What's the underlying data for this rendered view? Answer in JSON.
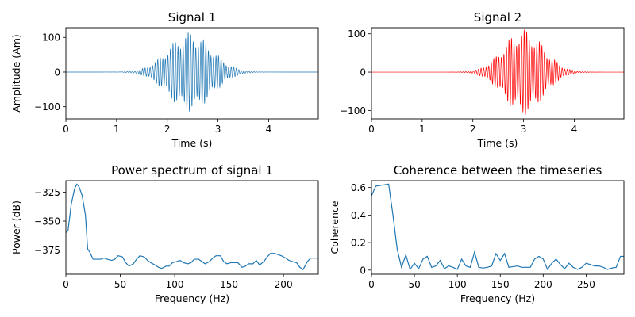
{
  "colors": {
    "series_blue": "#1f77b4",
    "series_red": "#ff0000",
    "axis": "#000000"
  },
  "chart_data": [
    {
      "id": "signal1",
      "type": "line",
      "title": "Signal 1",
      "xlabel": "Time (s)",
      "ylabel": "Amplitude (Am)",
      "xlim": [
        0,
        4.98
      ],
      "ylim": [
        -135,
        128
      ],
      "xticks": [
        0,
        1,
        2,
        3,
        4
      ],
      "yticks": [
        -100,
        0,
        100
      ],
      "series": [
        {
          "color": "#1f77b4",
          "waveform": {
            "center": 2.45,
            "width": 0.6,
            "amplitude": 115,
            "frequency": 20
          }
        }
      ]
    },
    {
      "id": "signal2",
      "type": "line",
      "title": "Signal 2",
      "xlabel": "Time (s)",
      "ylabel": "",
      "xlim": [
        0,
        4.98
      ],
      "ylim": [
        -122,
        116
      ],
      "xticks": [
        0,
        1,
        2,
        3,
        4
      ],
      "yticks": [
        -100,
        0,
        100
      ],
      "series": [
        {
          "color": "#ff0000",
          "waveform": {
            "center": 3.0,
            "width": 0.55,
            "amplitude": 112,
            "frequency": 20
          }
        }
      ]
    },
    {
      "id": "power",
      "type": "line",
      "title": "Power spectrum of signal 1",
      "xlabel": "Frequency (Hz)",
      "ylabel": "Power (dB)",
      "xlim": [
        0,
        232
      ],
      "ylim": [
        -396,
        -315
      ],
      "xticks": [
        0,
        50,
        100,
        150,
        200
      ],
      "yticks": [
        -325,
        -350,
        -375
      ],
      "series": [
        {
          "color": "#1f77b4",
          "x": [
            0,
            2,
            5,
            8,
            10,
            12,
            15,
            18,
            20,
            22,
            25,
            28,
            32,
            35,
            38,
            42,
            45,
            48,
            52,
            55,
            58,
            62,
            65,
            68,
            72,
            75,
            78,
            82,
            85,
            88,
            92,
            95,
            98,
            102,
            105,
            108,
            112,
            115,
            118,
            122,
            125,
            128,
            132,
            135,
            138,
            142,
            145,
            148,
            152,
            155,
            158,
            162,
            165,
            168,
            172,
            175,
            178,
            182,
            185,
            188,
            192,
            195,
            198,
            202,
            205,
            208,
            212,
            215,
            218,
            222,
            225,
            228,
            232
          ],
          "y": [
            -360,
            -358,
            -335,
            -322,
            -318,
            -320,
            -328,
            -345,
            -374,
            -377,
            -383,
            -383,
            -383,
            -382,
            -383,
            -384,
            -383,
            -380,
            -381,
            -386,
            -389,
            -387,
            -383,
            -380,
            -381,
            -384,
            -386,
            -388,
            -390,
            -391,
            -389,
            -389,
            -386,
            -385,
            -384,
            -386,
            -387,
            -386,
            -383,
            -383,
            -385,
            -387,
            -385,
            -382,
            -380,
            -380,
            -385,
            -387,
            -386,
            -386,
            -386,
            -390,
            -389,
            -387,
            -387,
            -384,
            -388,
            -385,
            -381,
            -378,
            -378,
            -379,
            -380,
            -382,
            -384,
            -385,
            -386,
            -390,
            -392,
            -385,
            -382,
            -382,
            -382
          ]
        }
      ]
    },
    {
      "id": "coherence",
      "type": "line",
      "title": "Coherence between the timeseries",
      "xlabel": "Frequency (Hz)",
      "ylabel": "Coherence",
      "xlim": [
        0,
        294
      ],
      "ylim": [
        -0.03,
        0.65
      ],
      "xticks": [
        0,
        50,
        100,
        150,
        200,
        250
      ],
      "yticks": [
        0.0,
        0.2,
        0.4,
        0.6
      ],
      "series": [
        {
          "color": "#1f77b4",
          "x": [
            0,
            5,
            10,
            15,
            20,
            25,
            30,
            35,
            40,
            45,
            50,
            55,
            60,
            65,
            70,
            75,
            80,
            85,
            90,
            95,
            100,
            105,
            110,
            115,
            120,
            125,
            130,
            135,
            140,
            145,
            150,
            155,
            160,
            165,
            170,
            175,
            180,
            185,
            190,
            195,
            200,
            205,
            210,
            215,
            220,
            225,
            230,
            235,
            240,
            245,
            250,
            255,
            260,
            265,
            270,
            275,
            280,
            285,
            290,
            294
          ],
          "y": [
            0.54,
            0.61,
            0.615,
            0.62,
            0.625,
            0.4,
            0.15,
            0.02,
            0.11,
            0.005,
            0.05,
            0.01,
            0.08,
            0.1,
            0.02,
            0.03,
            0.07,
            0.01,
            0.03,
            0.02,
            0.005,
            0.08,
            0.03,
            0.02,
            0.13,
            0.02,
            0.015,
            0.02,
            0.03,
            0.12,
            0.07,
            0.12,
            0.02,
            0.025,
            0.03,
            0.02,
            0.02,
            0.02,
            0.08,
            0.1,
            0.08,
            0.005,
            0.05,
            0.08,
            0.04,
            0.01,
            0.05,
            0.02,
            0.005,
            0.02,
            0.05,
            0.04,
            0.03,
            0.03,
            0.02,
            0.005,
            0.015,
            0.02,
            0.1,
            0.1
          ]
        }
      ]
    }
  ]
}
